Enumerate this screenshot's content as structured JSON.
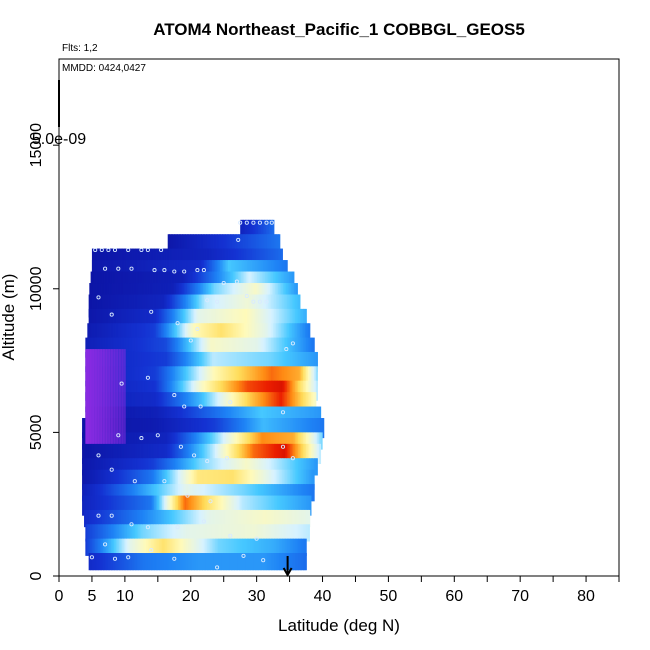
{
  "chart_data": {
    "type": "heatmap",
    "title": "ATOM4 Northeast_Pacific_1 COBBGL_GEOS5",
    "flights_note": "Flts: 1,2",
    "dates_note": "MMDD: 0424,0427",
    "scale_label": "5.0e-09",
    "xlabel": "Latitude (deg N)",
    "ylabel": "Altitude (m)",
    "xlim": [
      0,
      85
    ],
    "ylim": [
      0,
      18000
    ],
    "x_ticks": [
      "0",
      "5",
      "10",
      "20",
      "30",
      "40",
      "50",
      "60",
      "70",
      "80"
    ],
    "x_tick_values": [
      0,
      5,
      10,
      20,
      30,
      40,
      50,
      60,
      70,
      80
    ],
    "x_minor_ticks": [
      15,
      25,
      35,
      45,
      55,
      65,
      75,
      85
    ],
    "y_ticks": [
      "0",
      "5000",
      "10000",
      "15000"
    ],
    "y_tick_values": [
      0,
      5000,
      10000,
      15000
    ],
    "arrow_latitude": 34.7,
    "grid": false,
    "colors": {
      "low": "#0a0a9a",
      "mid_low": "#1e7cf0",
      "mid": "#d8f2ff",
      "mid_high": "#ffe888",
      "high": "#e81000",
      "purple": "#8a2be2",
      "marker": "#d8eaff"
    },
    "bands": [
      {
        "alt_bottom": 11400,
        "alt_top": 12400,
        "lat_start": 27.5,
        "lat_end": 32.5,
        "profile": [
          [
            0,
            0.12
          ],
          [
            1,
            0.28
          ]
        ]
      },
      {
        "alt_bottom": 11000,
        "alt_top": 11900,
        "lat_start": 16.5,
        "lat_end": 33.5,
        "profile": [
          [
            0,
            0.06
          ],
          [
            0.5,
            0.18
          ],
          [
            1,
            0.3
          ]
        ]
      },
      {
        "alt_bottom": 10600,
        "alt_top": 11400,
        "lat_start": 5.0,
        "lat_end": 33.8,
        "profile": [
          [
            0,
            0.05
          ],
          [
            0.6,
            0.12
          ],
          [
            1,
            0.28
          ]
        ]
      },
      {
        "alt_bottom": 10200,
        "alt_top": 11000,
        "lat_start": 5.0,
        "lat_end": 34.5,
        "profile": [
          [
            0,
            0.06
          ],
          [
            0.55,
            0.15
          ],
          [
            0.7,
            0.42
          ],
          [
            1,
            0.3
          ]
        ]
      },
      {
        "alt_bottom": 9800,
        "alt_top": 10600,
        "lat_start": 4.8,
        "lat_end": 35.5,
        "profile": [
          [
            0,
            0.05
          ],
          [
            0.45,
            0.1
          ],
          [
            0.62,
            0.32
          ],
          [
            0.78,
            0.52
          ],
          [
            1,
            0.35
          ]
        ]
      },
      {
        "alt_bottom": 9400,
        "alt_top": 10200,
        "lat_start": 4.6,
        "lat_end": 36.0,
        "profile": [
          [
            0,
            0.05
          ],
          [
            0.4,
            0.1
          ],
          [
            0.6,
            0.45
          ],
          [
            0.8,
            0.6
          ],
          [
            1,
            0.35
          ]
        ]
      },
      {
        "alt_bottom": 9000,
        "alt_top": 9800,
        "lat_start": 4.5,
        "lat_end": 36.5,
        "profile": [
          [
            0,
            0.05
          ],
          [
            0.35,
            0.12
          ],
          [
            0.55,
            0.5
          ],
          [
            0.75,
            0.58
          ],
          [
            1,
            0.4
          ]
        ]
      },
      {
        "alt_bottom": 8500,
        "alt_top": 9300,
        "lat_start": 4.5,
        "lat_end": 37.5,
        "profile": [
          [
            0,
            0.06
          ],
          [
            0.3,
            0.15
          ],
          [
            0.5,
            0.55
          ],
          [
            0.72,
            0.62
          ],
          [
            1,
            0.38
          ]
        ]
      },
      {
        "alt_bottom": 8000,
        "alt_top": 8800,
        "lat_start": 4.3,
        "lat_end": 38.0,
        "profile": [
          [
            0,
            0.08
          ],
          [
            0.3,
            0.2
          ],
          [
            0.48,
            0.62
          ],
          [
            0.6,
            0.7
          ],
          [
            0.8,
            0.55
          ],
          [
            1,
            0.3
          ]
        ]
      },
      {
        "alt_bottom": 7600,
        "alt_top": 8300,
        "lat_start": 4.0,
        "lat_end": 38.5,
        "profile": [
          [
            0,
            0.1
          ],
          [
            0.35,
            0.22
          ],
          [
            0.55,
            0.6
          ],
          [
            0.75,
            0.55
          ],
          [
            1,
            0.3
          ]
        ]
      },
      {
        "alt_bottom": 7100,
        "alt_top": 7800,
        "lat_start": 4.0,
        "lat_end": 39.0,
        "profile": [
          [
            0,
            0.12
          ],
          [
            0.35,
            0.2
          ],
          [
            0.55,
            0.5
          ],
          [
            0.8,
            0.45
          ],
          [
            1,
            0.35
          ]
        ]
      },
      {
        "alt_bottom": 6600,
        "alt_top": 7300,
        "lat_start": 4.0,
        "lat_end": 39.2,
        "profile": [
          [
            0,
            0.1
          ],
          [
            0.3,
            0.2
          ],
          [
            0.55,
            0.62
          ],
          [
            0.8,
            0.85
          ],
          [
            0.92,
            0.78
          ],
          [
            1,
            0.45
          ]
        ]
      },
      {
        "alt_bottom": 6100,
        "alt_top": 6800,
        "lat_start": 4.0,
        "lat_end": 39.0,
        "profile": [
          [
            0,
            0.1
          ],
          [
            0.3,
            0.18
          ],
          [
            0.5,
            0.6
          ],
          [
            0.7,
            0.88
          ],
          [
            0.85,
            0.95
          ],
          [
            0.93,
            0.7
          ],
          [
            1,
            0.5
          ]
        ]
      },
      {
        "alt_bottom": 5700,
        "alt_top": 6400,
        "lat_start": 4.0,
        "lat_end": 38.8,
        "profile": [
          [
            0,
            0.1
          ],
          [
            0.3,
            0.15
          ],
          [
            0.5,
            0.4
          ],
          [
            0.72,
            0.75
          ],
          [
            0.85,
            0.92
          ],
          [
            1,
            0.6
          ]
        ]
      },
      {
        "alt_bottom": 5300,
        "alt_top": 5900,
        "lat_start": 4.0,
        "lat_end": 39.5,
        "profile": [
          [
            0,
            0.06
          ],
          [
            0.3,
            0.1
          ],
          [
            0.5,
            0.25
          ],
          [
            0.75,
            0.42
          ],
          [
            1,
            0.35
          ]
        ]
      },
      {
        "alt_bottom": 4800,
        "alt_top": 5500,
        "lat_start": 3.5,
        "lat_end": 40.0,
        "profile": [
          [
            0,
            0.05
          ],
          [
            0.3,
            0.08
          ],
          [
            0.55,
            0.2
          ],
          [
            0.75,
            0.4
          ],
          [
            1,
            0.3
          ]
        ]
      },
      {
        "alt_bottom": 4400,
        "alt_top": 5000,
        "lat_start": 3.5,
        "lat_end": 39.8,
        "profile": [
          [
            0,
            0.05
          ],
          [
            0.35,
            0.12
          ],
          [
            0.55,
            0.45
          ],
          [
            0.75,
            0.82
          ],
          [
            0.88,
            0.78
          ],
          [
            1,
            0.45
          ]
        ]
      },
      {
        "alt_bottom": 3900,
        "alt_top": 4600,
        "lat_start": 3.5,
        "lat_end": 39.5,
        "profile": [
          [
            0,
            0.05
          ],
          [
            0.35,
            0.15
          ],
          [
            0.55,
            0.5
          ],
          [
            0.72,
            0.85
          ],
          [
            0.85,
            0.95
          ],
          [
            1,
            0.5
          ]
        ]
      },
      {
        "alt_bottom": 3500,
        "alt_top": 4100,
        "lat_start": 3.5,
        "lat_end": 39.0,
        "profile": [
          [
            0,
            0.06
          ],
          [
            0.3,
            0.2
          ],
          [
            0.5,
            0.45
          ],
          [
            0.7,
            0.6
          ],
          [
            1,
            0.35
          ]
        ]
      },
      {
        "alt_bottom": 3000,
        "alt_top": 3700,
        "lat_start": 3.5,
        "lat_end": 38.5,
        "profile": [
          [
            0,
            0.06
          ],
          [
            0.3,
            0.3
          ],
          [
            0.5,
            0.68
          ],
          [
            0.65,
            0.7
          ],
          [
            0.85,
            0.5
          ],
          [
            1,
            0.35
          ]
        ]
      },
      {
        "alt_bottom": 2600,
        "alt_top": 3200,
        "lat_start": 3.5,
        "lat_end": 38.5,
        "profile": [
          [
            0,
            0.1
          ],
          [
            0.25,
            0.35
          ],
          [
            0.45,
            0.55
          ],
          [
            0.7,
            0.45
          ],
          [
            1,
            0.3
          ]
        ]
      },
      {
        "alt_bottom": 2100,
        "alt_top": 2800,
        "lat_start": 3.5,
        "lat_end": 38.0,
        "profile": [
          [
            0,
            0.12
          ],
          [
            0.3,
            0.3
          ],
          [
            0.45,
            0.85
          ],
          [
            0.55,
            0.7
          ],
          [
            0.7,
            0.5
          ],
          [
            1,
            0.35
          ]
        ]
      },
      {
        "alt_bottom": 1700,
        "alt_top": 2300,
        "lat_start": 3.8,
        "lat_end": 38.0,
        "profile": [
          [
            0,
            0.15
          ],
          [
            0.3,
            0.35
          ],
          [
            0.55,
            0.55
          ],
          [
            0.8,
            0.6
          ],
          [
            1,
            0.55
          ]
        ]
      },
      {
        "alt_bottom": 1200,
        "alt_top": 1800,
        "lat_start": 4.0,
        "lat_end": 38.0,
        "profile": [
          [
            0,
            0.2
          ],
          [
            0.25,
            0.45
          ],
          [
            0.45,
            0.55
          ],
          [
            0.75,
            0.58
          ],
          [
            1,
            0.5
          ]
        ]
      },
      {
        "alt_bottom": 700,
        "alt_top": 1300,
        "lat_start": 4.0,
        "lat_end": 37.5,
        "profile": [
          [
            0,
            0.2
          ],
          [
            0.2,
            0.55
          ],
          [
            0.35,
            0.7
          ],
          [
            0.6,
            0.45
          ],
          [
            0.85,
            0.38
          ],
          [
            1,
            0.3
          ]
        ]
      },
      {
        "alt_bottom": 200,
        "alt_top": 800,
        "lat_start": 4.5,
        "lat_end": 37.5,
        "profile": [
          [
            0,
            0.15
          ],
          [
            0.25,
            0.3
          ],
          [
            0.5,
            0.35
          ],
          [
            0.8,
            0.35
          ],
          [
            1,
            0.28
          ]
        ]
      }
    ],
    "purple_region": {
      "alt_bottom": 4600,
      "alt_top": 7900,
      "lat_start": 4.0,
      "lat_end": 10.0
    },
    "markers": [
      [
        27.5,
        12300
      ],
      [
        28.5,
        12300
      ],
      [
        29.5,
        12300
      ],
      [
        30.5,
        12300
      ],
      [
        31.5,
        12300
      ],
      [
        32.3,
        12300
      ],
      [
        27.2,
        11700
      ],
      [
        5.5,
        11350
      ],
      [
        6.5,
        11350
      ],
      [
        7.5,
        11350
      ],
      [
        8.5,
        11350
      ],
      [
        10.5,
        11350
      ],
      [
        12.5,
        11350
      ],
      [
        13.5,
        11350
      ],
      [
        15.5,
        11350
      ],
      [
        7,
        10700
      ],
      [
        9,
        10700
      ],
      [
        11,
        10700
      ],
      [
        14.5,
        10650
      ],
      [
        16,
        10650
      ],
      [
        17.5,
        10600
      ],
      [
        19,
        10600
      ],
      [
        21,
        10650
      ],
      [
        22,
        10650
      ],
      [
        25,
        10200
      ],
      [
        27,
        10250
      ],
      [
        28.5,
        9750
      ],
      [
        29.5,
        9550
      ],
      [
        30.5,
        9550
      ],
      [
        31.5,
        9550
      ],
      [
        24,
        9550
      ],
      [
        22.5,
        9600
      ],
      [
        6,
        9700
      ],
      [
        8,
        9100
      ],
      [
        14,
        9200
      ],
      [
        18,
        8800
      ],
      [
        21,
        8600
      ],
      [
        20,
        8200
      ],
      [
        34.5,
        7900
      ],
      [
        35.5,
        8100
      ],
      [
        9.5,
        6700
      ],
      [
        13.5,
        6900
      ],
      [
        17.5,
        6300
      ],
      [
        19,
        5900
      ],
      [
        21.5,
        5900
      ],
      [
        26,
        6050
      ],
      [
        34,
        5700
      ],
      [
        9,
        4900
      ],
      [
        12.5,
        4800
      ],
      [
        15,
        4900
      ],
      [
        18.5,
        4500
      ],
      [
        20.5,
        4200
      ],
      [
        22.5,
        4000
      ],
      [
        25.5,
        4100
      ],
      [
        34,
        4500
      ],
      [
        35.5,
        4100
      ],
      [
        6,
        4200
      ],
      [
        8,
        3700
      ],
      [
        11.5,
        3300
      ],
      [
        16,
        3300
      ],
      [
        19.5,
        2800
      ],
      [
        23,
        2600
      ],
      [
        6,
        2100
      ],
      [
        8,
        2100
      ],
      [
        11,
        1800
      ],
      [
        13.5,
        1700
      ],
      [
        18,
        1700
      ],
      [
        22,
        1900
      ],
      [
        26,
        1400
      ],
      [
        30,
        1300
      ],
      [
        7,
        1100
      ],
      [
        8.5,
        600
      ],
      [
        10.5,
        650
      ],
      [
        14,
        900
      ],
      [
        17.5,
        600
      ],
      [
        24,
        300
      ],
      [
        28,
        700
      ],
      [
        31,
        550
      ],
      [
        5,
        650
      ]
    ]
  }
}
